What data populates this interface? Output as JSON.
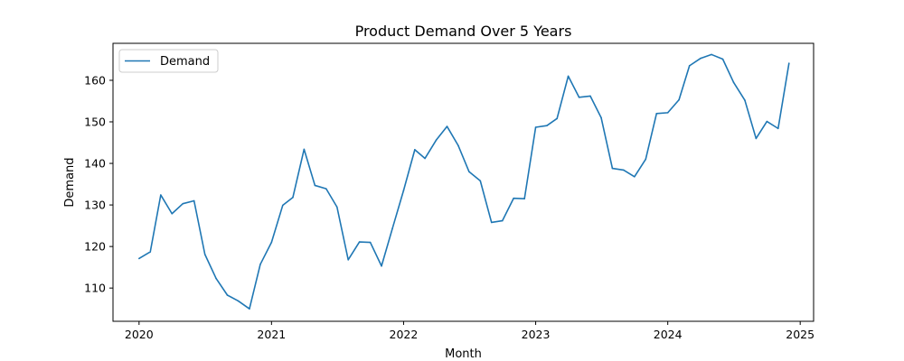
{
  "chart_data": {
    "type": "line",
    "title": "Product Demand Over 5 Years",
    "xlabel": "Month",
    "ylabel": "Demand",
    "xlim": [
      "2019-10-21",
      "2025-02-07"
    ],
    "ylim": [
      102.0,
      168.9
    ],
    "x_ticks": [
      "2020",
      "2021",
      "2022",
      "2023",
      "2024",
      "2025"
    ],
    "x_tick_dates": [
      "2020-01-01",
      "2021-01-01",
      "2022-01-01",
      "2023-01-01",
      "2024-01-01",
      "2025-01-01"
    ],
    "y_ticks": [
      110,
      120,
      130,
      140,
      150,
      160
    ],
    "grid": false,
    "legend": {
      "position": "upper-left"
    },
    "color": "#1f77b4",
    "x": [
      "2020-01-01",
      "2020-02-01",
      "2020-03-01",
      "2020-04-01",
      "2020-05-01",
      "2020-06-01",
      "2020-07-01",
      "2020-08-01",
      "2020-09-01",
      "2020-10-01",
      "2020-11-01",
      "2020-12-01",
      "2021-01-01",
      "2021-02-01",
      "2021-03-01",
      "2021-04-01",
      "2021-05-01",
      "2021-06-01",
      "2021-07-01",
      "2021-08-01",
      "2021-09-01",
      "2021-10-01",
      "2021-11-01",
      "2021-12-01",
      "2022-01-01",
      "2022-02-01",
      "2022-03-01",
      "2022-04-01",
      "2022-05-01",
      "2022-06-01",
      "2022-07-01",
      "2022-08-01",
      "2022-09-01",
      "2022-10-01",
      "2022-11-01",
      "2022-12-01",
      "2023-01-01",
      "2023-02-01",
      "2023-03-01",
      "2023-04-01",
      "2023-05-01",
      "2023-06-01",
      "2023-07-01",
      "2023-08-01",
      "2023-09-01",
      "2023-10-01",
      "2023-11-01",
      "2023-12-01",
      "2024-01-01",
      "2024-02-01",
      "2024-03-01",
      "2024-04-01",
      "2024-05-01",
      "2024-06-01",
      "2024-07-01",
      "2024-08-01",
      "2024-09-01",
      "2024-10-01",
      "2024-11-01",
      "2024-12-01"
    ],
    "series": [
      {
        "name": "Demand",
        "values": [
          117.1,
          118.7,
          132.4,
          127.9,
          130.3,
          131.0,
          118.1,
          112.3,
          108.3,
          106.9,
          105.0,
          115.7,
          121.0,
          129.9,
          131.8,
          143.4,
          134.7,
          133.9,
          129.5,
          116.8,
          121.1,
          121.0,
          115.3,
          124.3,
          133.5,
          143.3,
          141.2,
          145.6,
          148.9,
          144.3,
          138.0,
          135.8,
          125.8,
          126.2,
          131.6,
          131.5,
          148.7,
          149.1,
          150.8,
          161.0,
          155.9,
          156.2,
          151.0,
          138.8,
          138.4,
          136.8,
          141.0,
          152.0,
          152.2,
          155.3,
          163.5,
          165.3,
          166.2,
          165.1,
          159.5,
          155.2,
          146.0,
          150.1,
          148.4,
          164.1
        ]
      }
    ]
  }
}
